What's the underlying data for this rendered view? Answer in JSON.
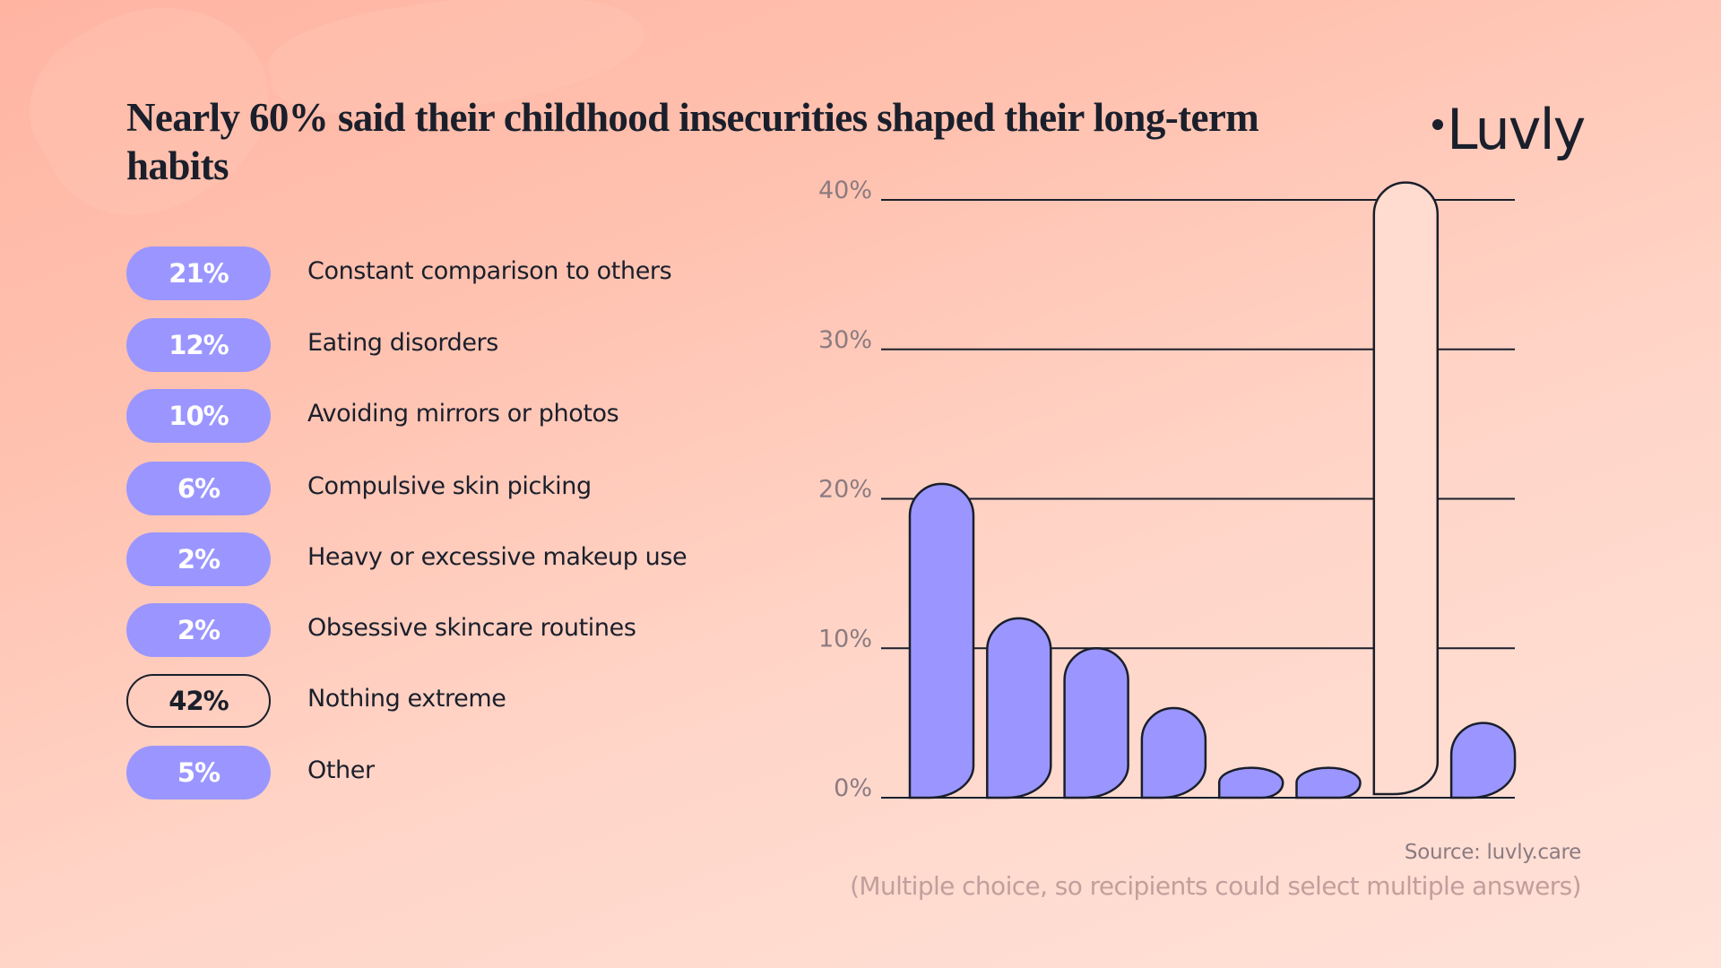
{
  "title": "Nearly 60% said their childhood insecurities shaped their long-term habits",
  "logo": "Luvly",
  "colors": {
    "bar_fill": "#9b96ff",
    "highlight_fill": "transparent",
    "stroke": "#1a1f2b",
    "text": "#1a1f2b",
    "tick_text": "#8c7b80"
  },
  "legend": [
    {
      "value": "21%",
      "label": "Constant comparison to others",
      "style": "filled"
    },
    {
      "value": "12%",
      "label": "Eating disorders",
      "style": "filled"
    },
    {
      "value": "10%",
      "label": "Avoiding mirrors or photos",
      "style": "filled"
    },
    {
      "value": "6%",
      "label": "Compulsive skin picking",
      "style": "filled"
    },
    {
      "value": "2%",
      "label": "Heavy or excessive makeup use",
      "style": "filled"
    },
    {
      "value": "2%",
      "label": "Obsessive skincare routines",
      "style": "filled"
    },
    {
      "value": "42%",
      "label": "Nothing extreme",
      "style": "outline"
    },
    {
      "value": "5%",
      "label": "Other",
      "style": "filled"
    }
  ],
  "source": "Source: luvly.care",
  "note": "(Multiple choice, so recipients could select multiple answers)",
  "chart_data": {
    "type": "bar",
    "title": "Nearly 60% said their childhood insecurities shaped their long-term habits",
    "categories": [
      "Constant comparison to others",
      "Eating disorders",
      "Avoiding mirrors or photos",
      "Compulsive skin picking",
      "Heavy or excessive makeup use",
      "Obsessive skincare routines",
      "Nothing extreme",
      "Other"
    ],
    "values": [
      21,
      12,
      10,
      6,
      2,
      2,
      42,
      5
    ],
    "highlighted": [
      false,
      false,
      false,
      false,
      false,
      false,
      true,
      false
    ],
    "unit": "%",
    "xlabel": "",
    "ylabel": "",
    "ylim": [
      0,
      40
    ],
    "yticks": [
      0,
      10,
      20,
      30,
      40
    ],
    "ytick_labels": [
      "0%",
      "10%",
      "20%",
      "30%",
      "40%"
    ],
    "grid": true,
    "legend_placement": "left"
  }
}
